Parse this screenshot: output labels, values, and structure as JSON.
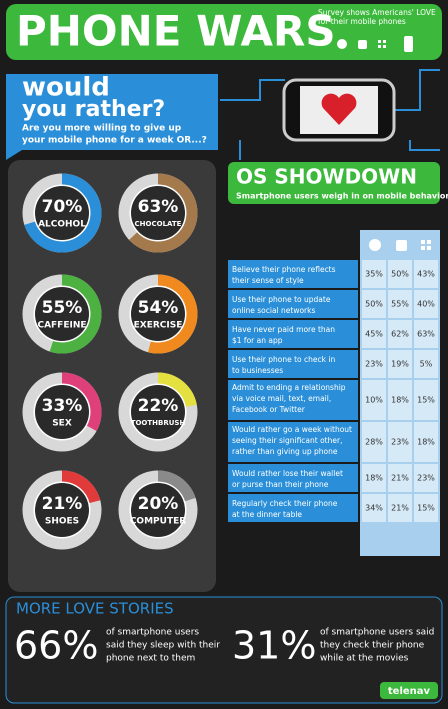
{
  "header": {
    "title": "PHONE WARS",
    "subtitle": "Survey shows Americans' LOVE for their mobile phones"
  },
  "question": {
    "title_line1": "would",
    "title_line2": "you rather?",
    "text_line1": "Are you more willing to give up",
    "text_line2": "your mobile phone for a week OR...?"
  },
  "donuts": [
    {
      "value": 70,
      "label": "70%",
      "name": "ALCOHOL",
      "color": "#2a8fd8"
    },
    {
      "value": 63,
      "label": "63%",
      "name": "CHOCOLATE",
      "color": "#a47a4c"
    },
    {
      "value": 55,
      "label": "55%",
      "name": "CAFFEINE",
      "color": "#4cb140"
    },
    {
      "value": 54,
      "label": "54%",
      "name": "EXERCISE",
      "color": "#f08a1e"
    },
    {
      "value": 33,
      "label": "33%",
      "name": "SEX",
      "color": "#e0407a"
    },
    {
      "value": 22,
      "label": "22%",
      "name": "TOOTHBRUSH",
      "color": "#e4e040"
    },
    {
      "value": 21,
      "label": "21%",
      "name": "SHOES",
      "color": "#e03a3a"
    },
    {
      "value": 20,
      "label": "20%",
      "name": "COMPUTER",
      "color": "#8a8a8a"
    }
  ],
  "showdown": {
    "title": "OS SHOWDOWN",
    "subtitle": "Smartphone users weigh in on mobile behavior"
  },
  "table": {
    "rows": [
      {
        "lines": [
          "Believe their phone reflects",
          "their sense of style"
        ],
        "cells": [
          "35%",
          "50%",
          "43%"
        ]
      },
      {
        "lines": [
          "Use their phone to update",
          "online social networks"
        ],
        "cells": [
          "50%",
          "55%",
          "40%"
        ]
      },
      {
        "lines": [
          "Have never paid more than",
          "$1 for an app"
        ],
        "cells": [
          "45%",
          "62%",
          "63%"
        ]
      },
      {
        "lines": [
          "Use their phone to check in",
          "to businesses"
        ],
        "cells": [
          "23%",
          "19%",
          "5%"
        ]
      },
      {
        "lines": [
          "Admit to ending a relationship",
          "via voice mail, text, email,",
          "Facebook or Twitter"
        ],
        "cells": [
          "10%",
          "18%",
          "15%"
        ]
      },
      {
        "lines": [
          "Would rather go a week without",
          "seeing their significant other,",
          "rather than giving up phone"
        ],
        "cells": [
          "28%",
          "23%",
          "18%"
        ]
      },
      {
        "lines": [
          "Would rather lose their wallet",
          "or purse than their phone"
        ],
        "cells": [
          "18%",
          "21%",
          "23%"
        ]
      },
      {
        "lines": [
          "Regularly check their phone",
          "at the dinner table"
        ],
        "cells": [
          "34%",
          "21%",
          "15%"
        ]
      }
    ]
  },
  "footer": {
    "title": "MORE LOVE STORIES",
    "stats": [
      {
        "value": "66%",
        "lines": [
          "of smartphone users",
          "said they sleep with their",
          "phone next to them"
        ]
      },
      {
        "value": "31%",
        "lines": [
          "of smartphone users said",
          "they check their phone",
          "while at the movies"
        ]
      }
    ],
    "brand": "telenav"
  }
}
